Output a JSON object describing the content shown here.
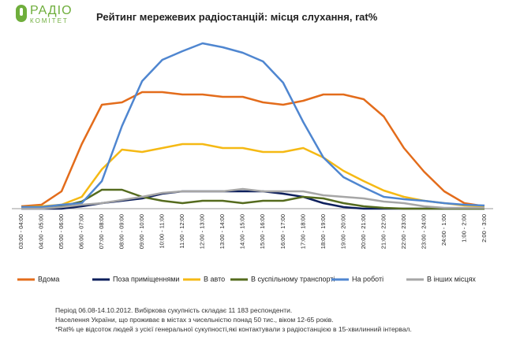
{
  "logo": {
    "top": "РАДІО",
    "bottom": "КОМІТЕТ"
  },
  "chart_data": {
    "type": "line",
    "title": "Рейтинг мережевих радіостанцій: місця слухання, rat%",
    "categories": [
      "03:00 - 04:00",
      "04:00 - 05:00",
      "05:00 - 06:00",
      "06:00 - 07:00",
      "07:00 - 08:00",
      "08:00 - 09:00",
      "09:00 - 10:00",
      "10:00 - 11:00",
      "11:00 - 12:00",
      "12:00 - 13:00",
      "13:00 - 14:00",
      "14:00 - 15:00",
      "15:00 - 16:00",
      "16:00 - 17:00",
      "17:00 - 18:00",
      "18:00 - 19:00",
      "19:00 - 20:00",
      "20:00 - 21:00",
      "21:00 - 22:00",
      "22:00 - 23:00",
      "23:00 - 24:00",
      "24:00 - 1:00",
      "1:00 - 2:00",
      "2:00 - 3:00"
    ],
    "ylim": [
      0,
      4.5
    ],
    "series": [
      {
        "name": "Вдома",
        "color": "#e36c1b",
        "values": [
          0.06,
          0.1,
          0.44,
          1.64,
          2.64,
          2.7,
          2.96,
          2.96,
          2.9,
          2.9,
          2.84,
          2.84,
          2.7,
          2.64,
          2.74,
          2.9,
          2.9,
          2.78,
          2.34,
          1.54,
          0.94,
          0.44,
          0.14,
          0.06
        ]
      },
      {
        "name": "Поза приміщеннями",
        "color": "#0d1f5c",
        "values": [
          0,
          0,
          0,
          0.06,
          0.14,
          0.2,
          0.26,
          0.38,
          0.44,
          0.44,
          0.44,
          0.44,
          0.44,
          0.38,
          0.3,
          0.14,
          0.04,
          0,
          0,
          0,
          0,
          0,
          0,
          0
        ]
      },
      {
        "name": "В авто",
        "color": "#f5b914",
        "values": [
          0.04,
          0.06,
          0.1,
          0.3,
          1,
          1.5,
          1.44,
          1.54,
          1.64,
          1.64,
          1.54,
          1.54,
          1.44,
          1.44,
          1.54,
          1.3,
          0.96,
          0.7,
          0.46,
          0.3,
          0.2,
          0.14,
          0.08,
          0.06
        ]
      },
      {
        "name": "В суспільному транспорті",
        "color": "#556b1e",
        "values": [
          0.04,
          0.04,
          0.06,
          0.18,
          0.48,
          0.48,
          0.3,
          0.2,
          0.14,
          0.2,
          0.2,
          0.14,
          0.2,
          0.2,
          0.3,
          0.26,
          0.14,
          0.06,
          0.02,
          0,
          0,
          0,
          0,
          0
        ]
      },
      {
        "name": "На роботі",
        "color": "#4f86d0",
        "values": [
          0.04,
          0.04,
          0.1,
          0.14,
          0.7,
          2.1,
          3.24,
          3.78,
          4,
          4.2,
          4.1,
          3.96,
          3.74,
          3.2,
          2.2,
          1.3,
          0.8,
          0.54,
          0.3,
          0.24,
          0.2,
          0.14,
          0.1,
          0.08
        ]
      },
      {
        "name": "В інших місцях",
        "color": "#a6a6a6",
        "values": [
          0,
          0,
          0.04,
          0.1,
          0.14,
          0.22,
          0.3,
          0.4,
          0.44,
          0.44,
          0.44,
          0.5,
          0.44,
          0.44,
          0.44,
          0.34,
          0.3,
          0.26,
          0.18,
          0.14,
          0.06,
          0.02,
          0.02,
          0.02
        ]
      }
    ],
    "notes": [
      "Період 06.08-14.10.2012. Вибіркова сукупність складає 11 183 респонденти.",
      "Населення України, що проживає в містах з чисельністю понад 50 тис., віком 12-65 років.",
      "*Rat% це відсоток людей з усієї генеральної сукупності,які контактували з радіостанцією в 15-хвилинний інтервал."
    ]
  }
}
